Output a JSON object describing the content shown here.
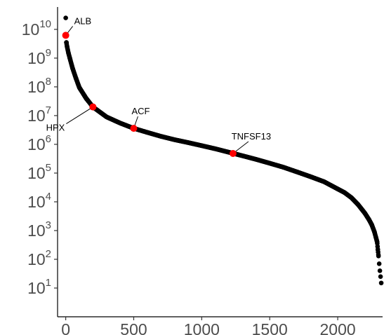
{
  "chart_data": {
    "type": "scatter",
    "title": "",
    "xlabel": "",
    "ylabel": "",
    "y_scale": "log10",
    "xlim": [
      -60,
      2330
    ],
    "ylim": [
      1,
      60000000000
    ],
    "x_ticks": [
      {
        "value": 0,
        "label": "0"
      },
      {
        "value": 500,
        "label": "500"
      },
      {
        "value": 1000,
        "label": "1000"
      },
      {
        "value": 1500,
        "label": "1500"
      },
      {
        "value": 2000,
        "label": "2000"
      }
    ],
    "y_ticks": [
      {
        "value": 10,
        "base": "10",
        "exp": "1"
      },
      {
        "value": 100,
        "base": "10",
        "exp": "2"
      },
      {
        "value": 1000,
        "base": "10",
        "exp": "3"
      },
      {
        "value": 10000,
        "base": "10",
        "exp": "4"
      },
      {
        "value": 100000,
        "base": "10",
        "exp": "5"
      },
      {
        "value": 1000000,
        "base": "10",
        "exp": "6"
      },
      {
        "value": 10000000,
        "base": "10",
        "exp": "7"
      },
      {
        "value": 100000000,
        "base": "10",
        "exp": "8"
      },
      {
        "value": 1000000000,
        "base": "10",
        "exp": "9"
      },
      {
        "value": 10000000000,
        "base": "10",
        "exp": "10"
      }
    ],
    "grid": false,
    "series": [
      {
        "color": "#000000",
        "x": [
          0,
          5,
          10,
          20,
          30,
          50,
          75,
          100,
          150,
          200,
          300,
          400,
          500,
          600,
          700,
          800,
          900,
          1000,
          1100,
          1200,
          1300,
          1400,
          1500,
          1600,
          1700,
          1800,
          1900,
          2000,
          2050,
          2100,
          2150,
          2200,
          2230,
          2250,
          2270,
          2280,
          2290,
          2295,
          2300,
          2305,
          2310,
          2315,
          2320
        ],
        "y": [
          25000000000,
          3500000000,
          2500000000,
          1500000000,
          1000000000,
          450000000,
          200000000,
          95000000,
          40000000,
          20000000,
          9000000,
          5500000,
          3600000,
          2600000,
          1900000,
          1450000,
          1150000,
          900000,
          700000,
          530000,
          400000,
          300000,
          220000,
          160000,
          110000,
          75000,
          50000,
          28000,
          21000,
          14000,
          8000,
          4000,
          2400,
          1600,
          900,
          600,
          400,
          220,
          130,
          70,
          40,
          25,
          15
        ]
      }
    ],
    "highlights": [
      {
        "label": "ALB",
        "x": 0,
        "y": 6200000000,
        "color": "#ff0000"
      },
      {
        "label": "HPX",
        "x": 200,
        "y": 20000000,
        "color": "#ff0000"
      },
      {
        "label": "ACF",
        "x": 500,
        "y": 3600000,
        "color": "#ff0000"
      },
      {
        "label": "TNFSF13",
        "x": 1230,
        "y": 480000,
        "color": "#ff0000"
      }
    ]
  }
}
